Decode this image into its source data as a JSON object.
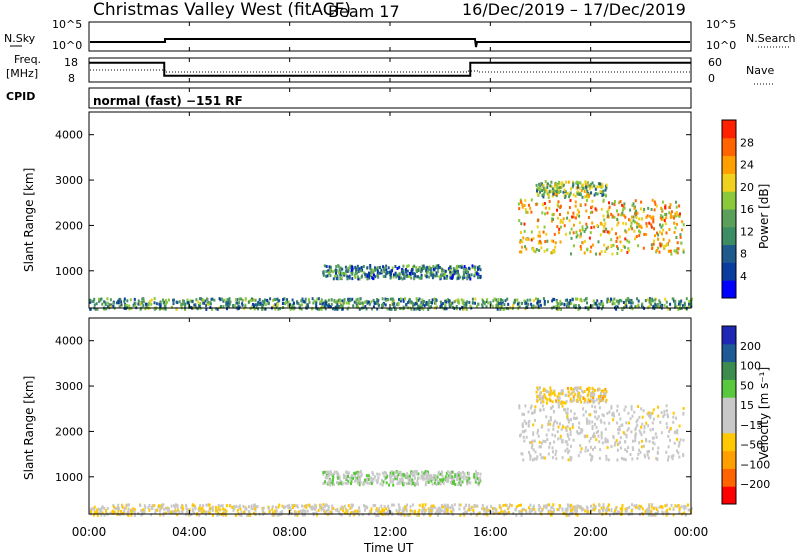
{
  "header": {
    "title": "Christmas Valley West (fitACF)",
    "beam": "Beam 17",
    "date_range": "16/Dec/2019 – 17/Dec/2019"
  },
  "summary": {
    "nsky_label": "N.Sky",
    "nsearch_label": "N.Search",
    "freq_label_1": "Freq.",
    "freq_label_2": "[MHz]",
    "nave_label": "Nave",
    "cpid_label": "CPID",
    "cpid_value": "normal (fast) −151 RF",
    "noise_ticks": [
      "10^5",
      "10^0"
    ],
    "freq_ticks": [
      "18",
      "8"
    ],
    "nave_ticks": [
      "60",
      "0"
    ]
  },
  "panel_power": {
    "ylabel": "Slant Range [km]",
    "yticks": [
      "4000",
      "3000",
      "2000",
      "1000"
    ],
    "colorbar_label": "Power [dB]",
    "colorbar_ticks": [
      "28",
      "24",
      "20",
      "16",
      "12",
      "8",
      "4"
    ],
    "colors": [
      "#0000ff",
      "#0a3ca0",
      "#1e5a8c",
      "#3c8c64",
      "#5aa05a",
      "#8cc83c",
      "#f0d21e",
      "#ffa000",
      "#ff6400",
      "#ff2000"
    ]
  },
  "panel_velocity": {
    "ylabel": "Slant Range [km]",
    "yticks": [
      "4000",
      "3000",
      "2000",
      "1000"
    ],
    "colorbar_label": "Velocity [m s⁻¹]",
    "colorbar_ticks": [
      "200",
      "100",
      "50",
      "15",
      "−15",
      "−50",
      "−100",
      "−200"
    ],
    "colors": [
      "#1e28b4",
      "#1e5a96",
      "#3c8c50",
      "#5ac83c",
      "#c8c8c8",
      "#c8c8c8",
      "#ffc800",
      "#ffa000",
      "#ff6400",
      "#ff0000"
    ]
  },
  "xaxis": {
    "ticks": [
      "00:00",
      "04:00",
      "08:00",
      "12:00",
      "16:00",
      "20:00",
      "00:00"
    ],
    "label": "Time UT"
  },
  "chart_data": {
    "type": "heatmap",
    "x_range_hours": [
      0,
      24
    ],
    "y_range_km": [
      180,
      4500
    ],
    "freq_steps": [
      {
        "from_h": 0,
        "to_h": 3,
        "mhz": 16
      },
      {
        "from_h": 3,
        "to_h": 15.2,
        "mhz": 10.6
      },
      {
        "from_h": 15.2,
        "to_h": 24,
        "mhz": 16
      }
    ],
    "echo_regions": [
      {
        "t0": 17.1,
        "t1": 23.7,
        "r0": 1400,
        "r1": 2600,
        "power_db": 22,
        "velocity": -5
      },
      {
        "t0": 9.3,
        "t1": 15.6,
        "r0": 850,
        "r1": 1150,
        "power_db": 10,
        "velocity": 30
      },
      {
        "t0": 0,
        "t1": 24,
        "r0": 180,
        "r1": 420,
        "power_db": 12,
        "velocity": -30
      },
      {
        "t0": 17.8,
        "t1": 20.6,
        "r0": 2650,
        "r1": 3000,
        "power_db": 16,
        "velocity": -60
      }
    ]
  }
}
